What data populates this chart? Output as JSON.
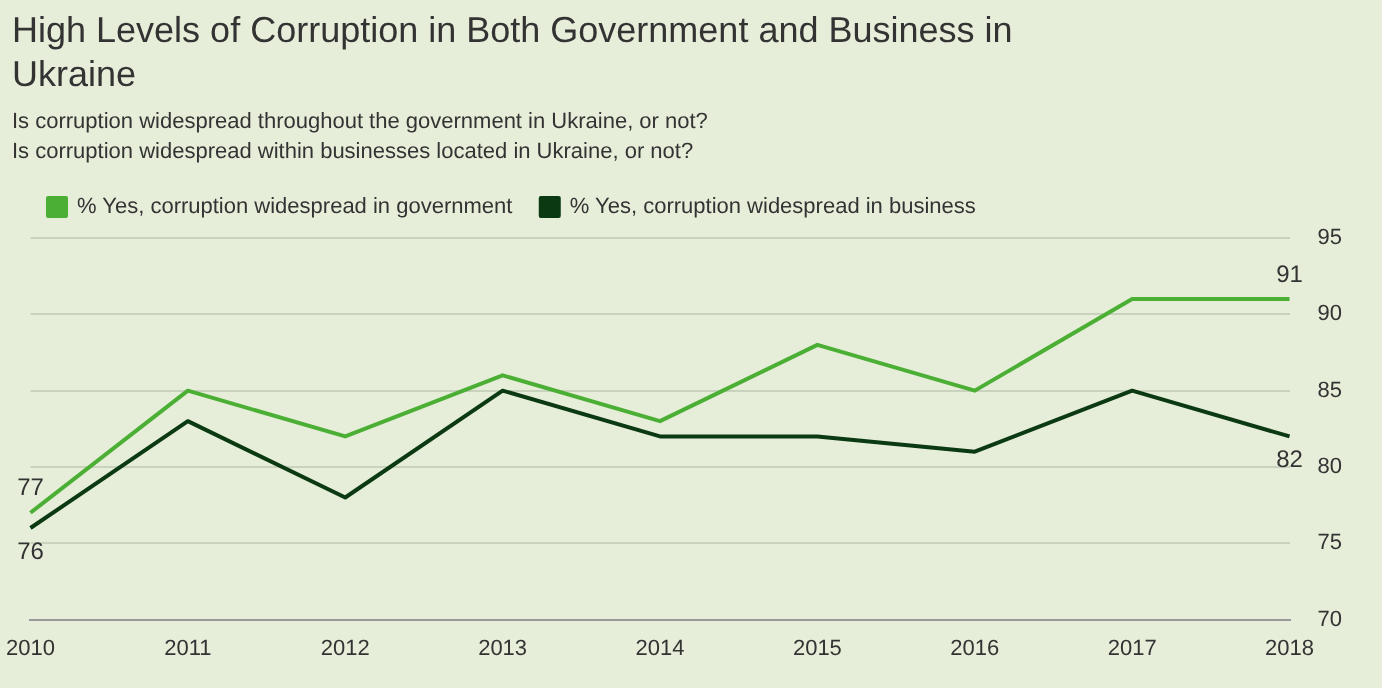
{
  "chart_data": {
    "type": "line",
    "title": "High Levels of Corruption in Both Government and Business in Ukraine",
    "subtitle": "Is corruption widespread throughout the government in Ukraine, or not?\nIs corruption widespread within businesses located in Ukraine, or not?",
    "categories": [
      "2010",
      "2011",
      "2012",
      "2013",
      "2014",
      "2015",
      "2016",
      "2017",
      "2018"
    ],
    "series": [
      {
        "name": "% Yes, corruption widespread in government",
        "color": "#4caf35",
        "values": [
          77,
          85,
          82,
          86,
          83,
          88,
          85,
          91,
          91
        ],
        "value_labels": [
          "77",
          null,
          null,
          null,
          null,
          null,
          null,
          null,
          "91"
        ]
      },
      {
        "name": "% Yes, corruption widespread in business",
        "color": "#0b3a12",
        "values": [
          76,
          83,
          78,
          85,
          82,
          82,
          81,
          85,
          82
        ],
        "value_labels": [
          "76",
          null,
          null,
          null,
          null,
          null,
          null,
          null,
          "82"
        ]
      }
    ],
    "ylim": [
      70,
      95
    ],
    "yticks": [
      70,
      75,
      80,
      85,
      90,
      95
    ],
    "grid": "y",
    "legend": "top left",
    "marker": "none",
    "line_style": "solid"
  }
}
